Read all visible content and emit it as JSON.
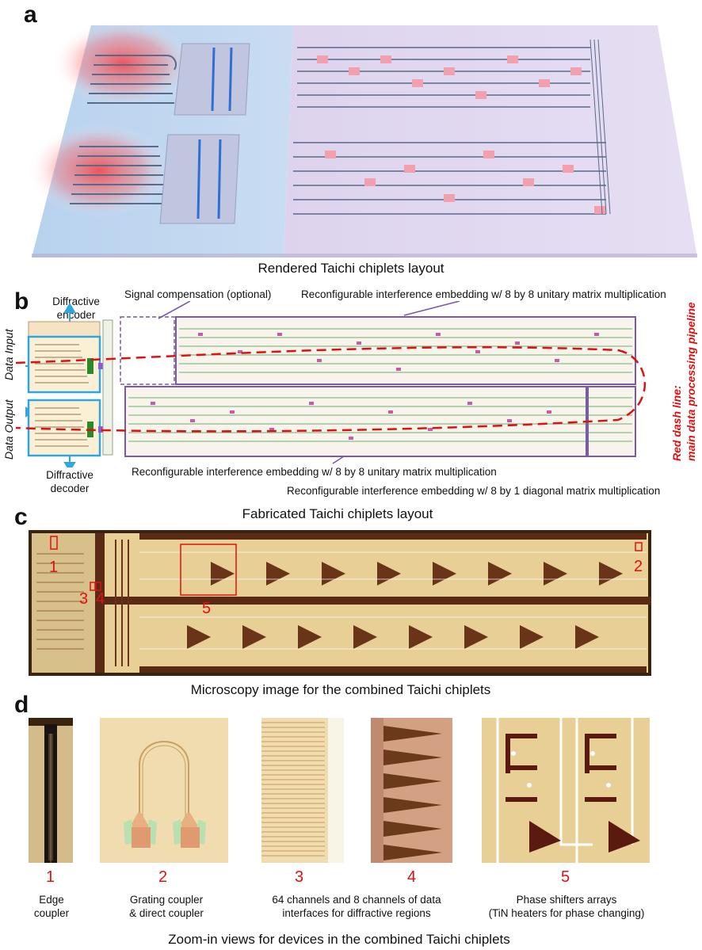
{
  "panel_a": {
    "letter": "a",
    "caption": "Rendered Taichi chiplets layout"
  },
  "panel_b": {
    "letter": "b",
    "diffractive_encoder": "Diffractive encoder",
    "diffractive_decoder": "Diffractive decoder",
    "data_input": "Data Input",
    "data_output": "Data Output",
    "signal_compensation": "Signal compensation (optional)",
    "embedding_top": "Reconfigurable interference embedding w/ 8 by 8 unitary matrix multiplication",
    "embedding_bottom": "Reconfigurable interference embedding w/ 8 by 8 unitary matrix multiplication",
    "embedding_diag": "Reconfigurable interference embedding w/ 8 by 1 diagonal matrix multiplication",
    "red_dash_title": "Red dash line:",
    "red_dash_sub": "main data processing pipeline",
    "caption": "Fabricated Taichi chiplets layout"
  },
  "panel_c": {
    "letter": "c",
    "markers": [
      "1",
      "2",
      "3",
      "4",
      "5"
    ],
    "caption": "Microscopy image for the combined Taichi chiplets"
  },
  "panel_d": {
    "letter": "d",
    "items": [
      {
        "num": "1",
        "label": "Edge\ncoupler"
      },
      {
        "num": "2",
        "label": "Grating coupler\n& direct coupler"
      },
      {
        "num": "3",
        "label": "64 channels and 8 channels of data"
      },
      {
        "num": "4",
        "label": "interfaces for diffractive regions"
      },
      {
        "num": "5",
        "label": "Phase shifters arrays\n(TiN heaters for phase changing)"
      }
    ],
    "caption": "Zoom-in views for devices in the combined Taichi chiplets"
  },
  "colors": {
    "accent_red": "#e01010",
    "box_blue": "#2fa6e0",
    "box_purple": "#7a5aa8",
    "chip_gold": "#e8cf96",
    "chip_dark": "#5a2a14"
  }
}
